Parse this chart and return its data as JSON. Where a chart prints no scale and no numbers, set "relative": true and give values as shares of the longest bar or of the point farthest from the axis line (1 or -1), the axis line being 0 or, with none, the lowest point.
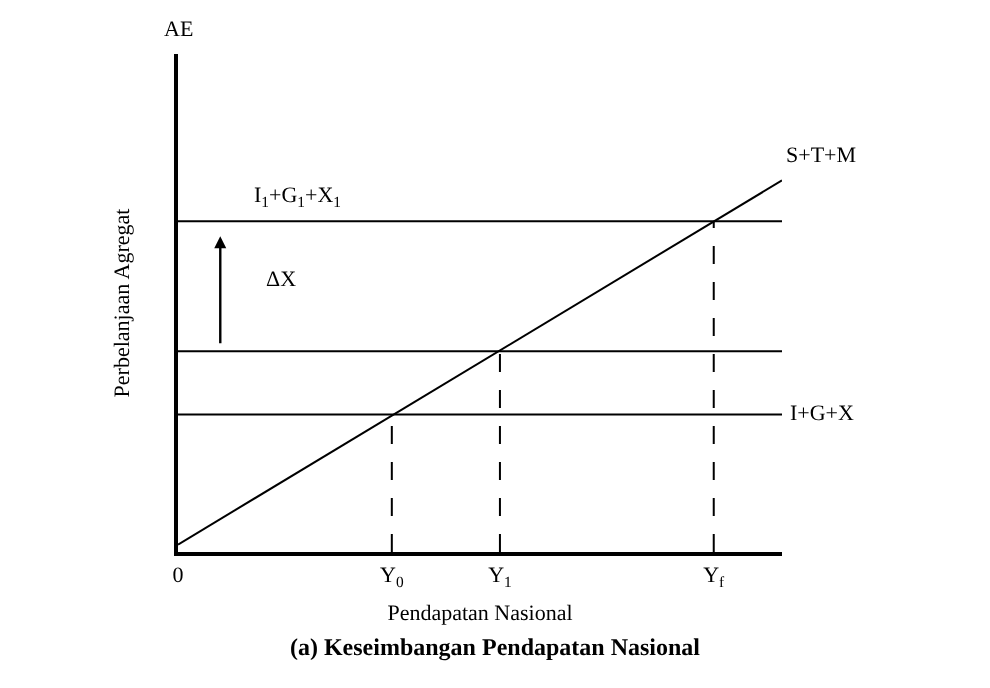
{
  "chart_data": {
    "type": "line",
    "relative": true,
    "title": "(a) Keseimbangan Pendapatan Nasional",
    "xlabel": "Pendapatan Nasional",
    "ylabel": "Perbelanjaan Agregat",
    "xlim": [
      0,
      1
    ],
    "xticks": [
      {
        "value": 0,
        "label": "0"
      },
      {
        "value": 0.354,
        "label": "Y$_{0}$"
      },
      {
        "value": 0.533,
        "label": "Y$_{1}$"
      },
      {
        "value": 0.887,
        "label": "Y$_{f}$"
      }
    ],
    "tick_labels": "x",
    "legend": false,
    "marker": "none",
    "series": [
      {
        "name": "S+T+M",
        "color": "#000000",
        "x": [
          0,
          1
        ],
        "values": [
          0.02,
          1
        ]
      },
      {
        "name": "I$_{1}$+G$_{1}$+X$_{1}$",
        "color": "#000000",
        "x": [
          0,
          1
        ],
        "values": [
          0.89,
          0.89
        ]
      },
      {
        "color": "#000000",
        "x": [
          0,
          1
        ],
        "values": [
          0.54,
          0.54
        ]
      },
      {
        "name": "I+G+X",
        "color": "#000000",
        "x": [
          0,
          1
        ],
        "values": [
          0.37,
          0.37
        ]
      },
      {
        "color": "#000000",
        "x": [
          0.354,
          0.354
        ],
        "values": [
          0,
          0.37
        ],
        "line_style": "dashed"
      },
      {
        "color": "#000000",
        "x": [
          0.533,
          0.533
        ],
        "values": [
          0,
          0.54
        ],
        "line_style": "dashed"
      },
      {
        "color": "#000000",
        "x": [
          0.887,
          0.887
        ],
        "values": [
          0,
          0.89
        ],
        "line_style": "dashed"
      }
    ],
    "annotations": [
      "AE",
      "ΔX"
    ]
  }
}
